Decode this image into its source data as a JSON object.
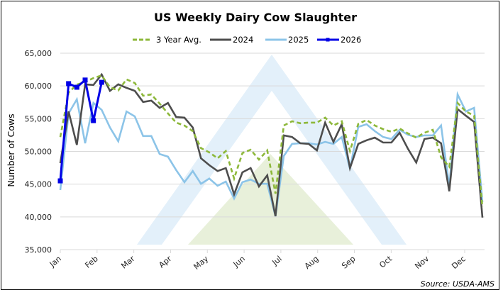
{
  "chart_data": {
    "type": "line",
    "title": "US Weekly Dairy Cow Slaughter",
    "xlabel": "",
    "ylabel": "Number of Cows",
    "source": "Source: USDA-AMS",
    "ylim": [
      35000,
      65000
    ],
    "yticks": [
      35000,
      40000,
      45000,
      50000,
      55000,
      60000,
      65000
    ],
    "ytick_labels": [
      "35,000",
      "40,000",
      "45,000",
      "50,000",
      "55,000",
      "60,000",
      "65,000"
    ],
    "xtick_labels": [
      "Jan",
      "Feb",
      "Mar",
      "Apr",
      "May",
      "Jun",
      "Jul",
      "Aug",
      "Sep",
      "Oct",
      "Nov",
      "Dec"
    ],
    "x_unit": "week of year",
    "grid": "horizontal",
    "legend_position": "top",
    "series": [
      {
        "name": "3 Year Avg.",
        "color": "#8DB83A",
        "style": "dashed",
        "values": [
          52200,
          59000,
          60200,
          60600,
          61200,
          61600,
          59800,
          59300,
          61000,
          60450,
          58500,
          58700,
          57300,
          55800,
          54400,
          53950,
          53100,
          50500,
          49850,
          48950,
          50050,
          45850,
          49750,
          50250,
          48750,
          50150,
          43550,
          53950,
          54600,
          54300,
          54400,
          54400,
          55150,
          53950,
          54600,
          50050,
          54200,
          54800,
          53950,
          53400,
          53000,
          53500,
          52750,
          52100,
          52850,
          53300,
          49100,
          47650,
          57400,
          56100,
          55450,
          41500
        ]
      },
      {
        "name": "2024",
        "color": "#4D4D4D",
        "style": "solid",
        "values": [
          48200,
          56100,
          51000,
          60250,
          60150,
          61750,
          59250,
          60250,
          59700,
          59250,
          57550,
          57750,
          56650,
          57400,
          55250,
          55150,
          53650,
          48950,
          47900,
          47000,
          47450,
          43450,
          46800,
          47450,
          44650,
          46350,
          40100,
          52450,
          52200,
          51250,
          51150,
          50150,
          54400,
          51450,
          54150,
          47450,
          51150,
          51700,
          52100,
          51350,
          51350,
          52850,
          50400,
          48300,
          51900,
          52100,
          51250,
          43900,
          56450,
          55450,
          54500,
          39900
        ]
      },
      {
        "name": "2025",
        "color": "#8CC4E8",
        "style": "solid",
        "values": [
          44100,
          55800,
          57950,
          51250,
          57400,
          56350,
          53650,
          51550,
          56100,
          55350,
          52350,
          52350,
          49600,
          49200,
          47150,
          45300,
          47000,
          45050,
          45850,
          44750,
          45400,
          42800,
          45300,
          45700,
          45050,
          45050,
          40100,
          49300,
          51150,
          51250,
          51250,
          51050,
          51450,
          51150,
          52200,
          47350,
          53750,
          54150,
          53100,
          52200,
          51900,
          53300,
          52550,
          52200,
          52450,
          52450,
          53950,
          44650,
          58700,
          56100,
          56650,
          42250
        ]
      },
      {
        "name": "2026",
        "color": "#0000E6",
        "style": "solid-markers",
        "values": [
          45500,
          60350,
          59800,
          60900,
          54700,
          60550
        ]
      }
    ]
  }
}
